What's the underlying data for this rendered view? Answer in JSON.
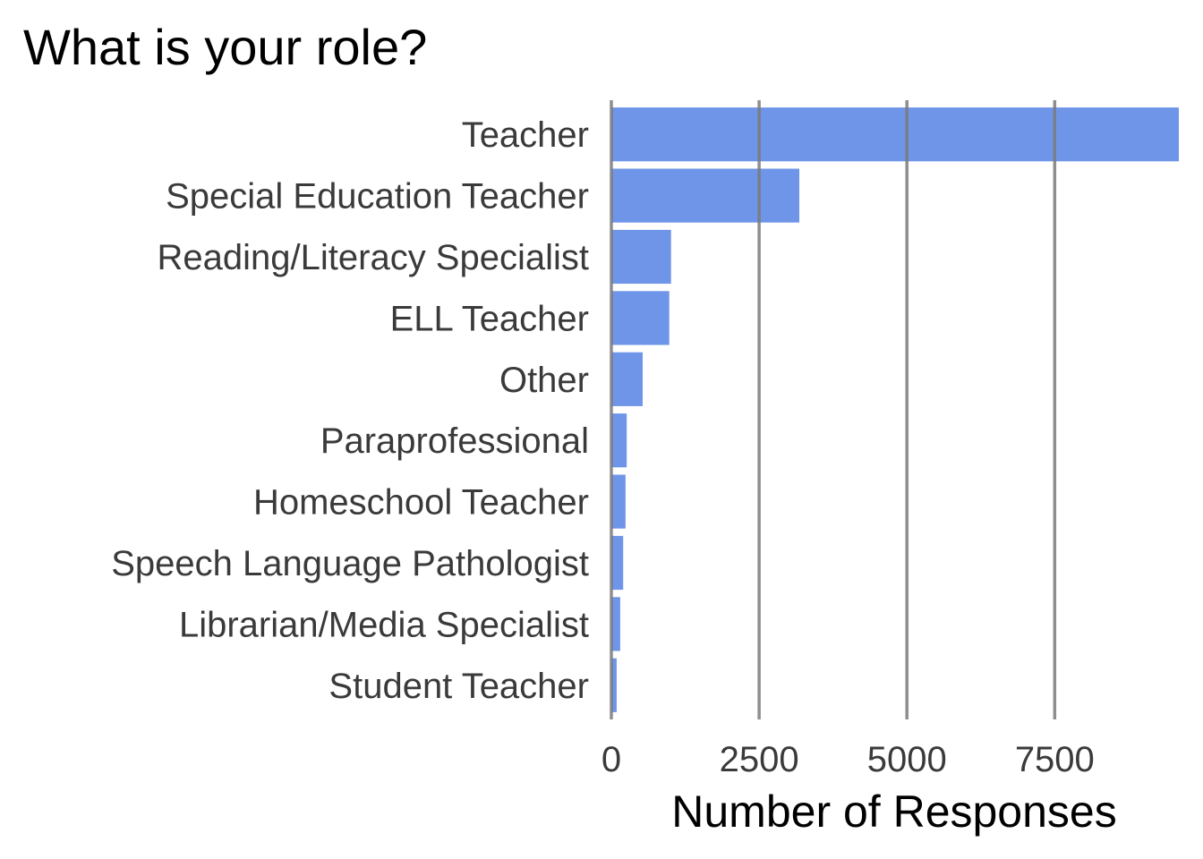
{
  "chart_data": {
    "type": "bar",
    "orientation": "horizontal",
    "title": "What is your role?",
    "xlabel": "Number of Responses",
    "ylabel": "",
    "categories": [
      "Teacher",
      "Special Education Teacher",
      "Reading/Literacy Specialist",
      "ELL Teacher",
      "Other",
      "Paraprofessional",
      "Homeschool Teacher",
      "Speech Language Pathologist",
      "Librarian/Media Specialist",
      "Student Teacher"
    ],
    "values": [
      9600,
      3180,
      1010,
      980,
      530,
      260,
      240,
      200,
      150,
      90
    ],
    "xlim": [
      0,
      9600
    ],
    "xticks": [
      0,
      2500,
      5000,
      7500
    ],
    "xtick_labels": [
      "0",
      "2500",
      "5000",
      "7500"
    ],
    "grid": "vertical major lines drawn over bars",
    "bar_color": "#6f95e8",
    "grid_color": "#7a7a7a"
  }
}
